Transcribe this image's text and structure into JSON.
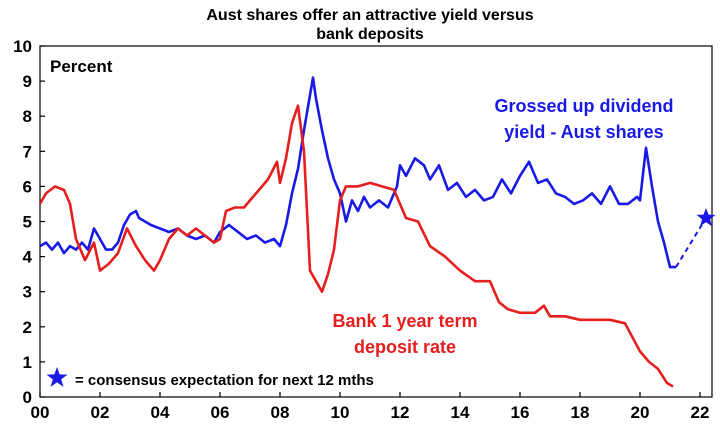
{
  "chart_data": {
    "type": "line",
    "title_lines": [
      "Aust shares offer an attractive yield versus",
      "bank deposits"
    ],
    "ylabel": "Percent",
    "ylim": [
      0,
      10
    ],
    "y_ticks": [
      0,
      1,
      2,
      3,
      4,
      5,
      6,
      7,
      8,
      9,
      10
    ],
    "xlim": [
      2000,
      2022.4
    ],
    "x_ticks": [
      {
        "value": 2000,
        "label": "00"
      },
      {
        "value": 2002,
        "label": "02"
      },
      {
        "value": 2004,
        "label": "04"
      },
      {
        "value": 2006,
        "label": "06"
      },
      {
        "value": 2008,
        "label": "08"
      },
      {
        "value": 2010,
        "label": "10"
      },
      {
        "value": 2012,
        "label": "12"
      },
      {
        "value": 2014,
        "label": "14"
      },
      {
        "value": 2016,
        "label": "16"
      },
      {
        "value": 2018,
        "label": "18"
      },
      {
        "value": 2020,
        "label": "20"
      },
      {
        "value": 2022,
        "label": "22"
      }
    ],
    "grid": false,
    "series": [
      {
        "name": "Grossed up dividend yield - Aust shares",
        "color": "#1a1ae6",
        "label_lines": [
          "Grossed up dividend",
          "yield - Aust shares"
        ],
        "points": [
          [
            2000.0,
            4.3
          ],
          [
            2000.2,
            4.4
          ],
          [
            2000.4,
            4.2
          ],
          [
            2000.6,
            4.4
          ],
          [
            2000.8,
            4.1
          ],
          [
            2001.0,
            4.3
          ],
          [
            2001.2,
            4.2
          ],
          [
            2001.4,
            4.4
          ],
          [
            2001.6,
            4.2
          ],
          [
            2001.8,
            4.8
          ],
          [
            2002.0,
            4.5
          ],
          [
            2002.2,
            4.2
          ],
          [
            2002.4,
            4.2
          ],
          [
            2002.6,
            4.4
          ],
          [
            2002.8,
            4.9
          ],
          [
            2003.0,
            5.2
          ],
          [
            2003.2,
            5.3
          ],
          [
            2003.3,
            5.1
          ],
          [
            2003.5,
            5.0
          ],
          [
            2003.7,
            4.9
          ],
          [
            2004.0,
            4.8
          ],
          [
            2004.3,
            4.7
          ],
          [
            2004.6,
            4.8
          ],
          [
            2004.9,
            4.6
          ],
          [
            2005.2,
            4.5
          ],
          [
            2005.5,
            4.6
          ],
          [
            2005.8,
            4.4
          ],
          [
            2006.0,
            4.7
          ],
          [
            2006.3,
            4.9
          ],
          [
            2006.6,
            4.7
          ],
          [
            2006.9,
            4.5
          ],
          [
            2007.2,
            4.6
          ],
          [
            2007.5,
            4.4
          ],
          [
            2007.8,
            4.5
          ],
          [
            2008.0,
            4.3
          ],
          [
            2008.2,
            4.9
          ],
          [
            2008.4,
            5.8
          ],
          [
            2008.6,
            6.5
          ],
          [
            2008.8,
            7.6
          ],
          [
            2009.0,
            8.6
          ],
          [
            2009.1,
            9.1
          ],
          [
            2009.2,
            8.5
          ],
          [
            2009.4,
            7.6
          ],
          [
            2009.6,
            6.8
          ],
          [
            2009.8,
            6.2
          ],
          [
            2010.0,
            5.8
          ],
          [
            2010.2,
            5.0
          ],
          [
            2010.4,
            5.6
          ],
          [
            2010.6,
            5.3
          ],
          [
            2010.8,
            5.7
          ],
          [
            2011.0,
            5.4
          ],
          [
            2011.3,
            5.6
          ],
          [
            2011.6,
            5.4
          ],
          [
            2011.9,
            6.0
          ],
          [
            2012.0,
            6.6
          ],
          [
            2012.2,
            6.3
          ],
          [
            2012.5,
            6.8
          ],
          [
            2012.8,
            6.6
          ],
          [
            2013.0,
            6.2
          ],
          [
            2013.3,
            6.6
          ],
          [
            2013.6,
            5.9
          ],
          [
            2013.9,
            6.1
          ],
          [
            2014.2,
            5.7
          ],
          [
            2014.5,
            5.9
          ],
          [
            2014.8,
            5.6
          ],
          [
            2015.1,
            5.7
          ],
          [
            2015.4,
            6.2
          ],
          [
            2015.7,
            5.8
          ],
          [
            2016.0,
            6.3
          ],
          [
            2016.3,
            6.7
          ],
          [
            2016.6,
            6.1
          ],
          [
            2016.9,
            6.2
          ],
          [
            2017.2,
            5.8
          ],
          [
            2017.5,
            5.7
          ],
          [
            2017.8,
            5.5
          ],
          [
            2018.1,
            5.6
          ],
          [
            2018.4,
            5.8
          ],
          [
            2018.7,
            5.5
          ],
          [
            2019.0,
            6.0
          ],
          [
            2019.3,
            5.5
          ],
          [
            2019.6,
            5.5
          ],
          [
            2019.9,
            5.7
          ],
          [
            2020.0,
            5.6
          ],
          [
            2020.2,
            7.1
          ],
          [
            2020.4,
            6.0
          ],
          [
            2020.6,
            5.0
          ],
          [
            2020.8,
            4.4
          ],
          [
            2021.0,
            3.7
          ],
          [
            2021.2,
            3.7
          ]
        ]
      },
      {
        "name": "Bank 1 year term deposit rate",
        "color": "#e61e1e",
        "label_lines": [
          "Bank 1 year term",
          "deposit rate"
        ],
        "points": [
          [
            2000.0,
            5.5
          ],
          [
            2000.2,
            5.8
          ],
          [
            2000.5,
            6.0
          ],
          [
            2000.8,
            5.9
          ],
          [
            2001.0,
            5.5
          ],
          [
            2001.2,
            4.5
          ],
          [
            2001.5,
            3.9
          ],
          [
            2001.8,
            4.4
          ],
          [
            2002.0,
            3.6
          ],
          [
            2002.3,
            3.8
          ],
          [
            2002.6,
            4.1
          ],
          [
            2002.9,
            4.8
          ],
          [
            2003.2,
            4.3
          ],
          [
            2003.5,
            3.9
          ],
          [
            2003.8,
            3.6
          ],
          [
            2004.0,
            3.9
          ],
          [
            2004.3,
            4.5
          ],
          [
            2004.6,
            4.8
          ],
          [
            2004.9,
            4.6
          ],
          [
            2005.2,
            4.8
          ],
          [
            2005.5,
            4.6
          ],
          [
            2005.8,
            4.4
          ],
          [
            2006.0,
            4.5
          ],
          [
            2006.2,
            5.3
          ],
          [
            2006.5,
            5.4
          ],
          [
            2006.8,
            5.4
          ],
          [
            2007.0,
            5.6
          ],
          [
            2007.3,
            5.9
          ],
          [
            2007.6,
            6.2
          ],
          [
            2007.9,
            6.7
          ],
          [
            2008.0,
            6.1
          ],
          [
            2008.2,
            6.8
          ],
          [
            2008.4,
            7.8
          ],
          [
            2008.6,
            8.3
          ],
          [
            2008.8,
            7.0
          ],
          [
            2009.0,
            3.6
          ],
          [
            2009.2,
            3.3
          ],
          [
            2009.4,
            3.0
          ],
          [
            2009.6,
            3.5
          ],
          [
            2009.8,
            4.2
          ],
          [
            2010.0,
            5.6
          ],
          [
            2010.2,
            6.0
          ],
          [
            2010.6,
            6.0
          ],
          [
            2011.0,
            6.1
          ],
          [
            2011.4,
            6.0
          ],
          [
            2011.8,
            5.9
          ],
          [
            2012.2,
            5.1
          ],
          [
            2012.6,
            5.0
          ],
          [
            2013.0,
            4.3
          ],
          [
            2013.5,
            4.0
          ],
          [
            2014.0,
            3.6
          ],
          [
            2014.5,
            3.3
          ],
          [
            2015.0,
            3.3
          ],
          [
            2015.3,
            2.7
          ],
          [
            2015.6,
            2.5
          ],
          [
            2016.0,
            2.4
          ],
          [
            2016.5,
            2.4
          ],
          [
            2016.8,
            2.6
          ],
          [
            2017.0,
            2.3
          ],
          [
            2017.5,
            2.3
          ],
          [
            2018.0,
            2.2
          ],
          [
            2018.5,
            2.2
          ],
          [
            2019.0,
            2.2
          ],
          [
            2019.5,
            2.1
          ],
          [
            2020.0,
            1.3
          ],
          [
            2020.3,
            1.0
          ],
          [
            2020.6,
            0.8
          ],
          [
            2020.9,
            0.4
          ],
          [
            2021.1,
            0.3
          ]
        ]
      }
    ],
    "forecast": {
      "from": [
        2021.2,
        3.7
      ],
      "to": [
        2022.2,
        5.1
      ],
      "style": "dashed",
      "color": "#1a1ae6"
    },
    "annotations": [
      {
        "marker": "star",
        "text": "= consensus expectation for next 12 mths"
      }
    ]
  }
}
